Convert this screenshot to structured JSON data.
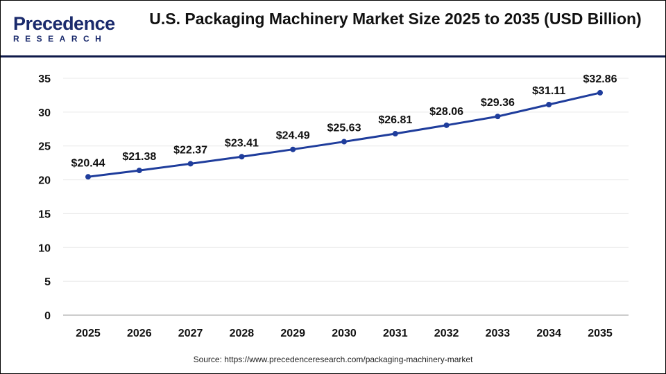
{
  "logo": {
    "line1": "Precedence",
    "line2": "RESEARCH"
  },
  "header": {
    "title": "U.S. Packaging Machinery Market Size 2025 to 2035 (USD Billion)"
  },
  "source": "Source: https://www.precedenceresearch.com/packaging-machinery-market",
  "colors": {
    "line": "#1f3d9c",
    "header_rule": "#0f1a4a",
    "grid": "#e8e8e8"
  },
  "chart_data": {
    "type": "line",
    "title": "U.S. Packaging Machinery Market Size 2025 to 2035 (USD Billion)",
    "xlabel": "",
    "ylabel": "",
    "categories": [
      "2025",
      "2026",
      "2027",
      "2028",
      "2029",
      "2030",
      "2031",
      "2032",
      "2033",
      "2034",
      "2035"
    ],
    "values": [
      20.44,
      21.38,
      22.37,
      23.41,
      24.49,
      25.63,
      26.81,
      28.06,
      29.36,
      31.11,
      32.86
    ],
    "data_labels": [
      "$20.44",
      "$21.38",
      "$22.37",
      "$23.41",
      "$24.49",
      "$25.63",
      "$26.81",
      "$28.06",
      "$29.36",
      "$31.11",
      "$32.86"
    ],
    "ylim": [
      0,
      35
    ],
    "yticks": [
      "0",
      "5",
      "10",
      "15",
      "20",
      "25",
      "30",
      "35"
    ],
    "grid": true,
    "legend": "none"
  }
}
